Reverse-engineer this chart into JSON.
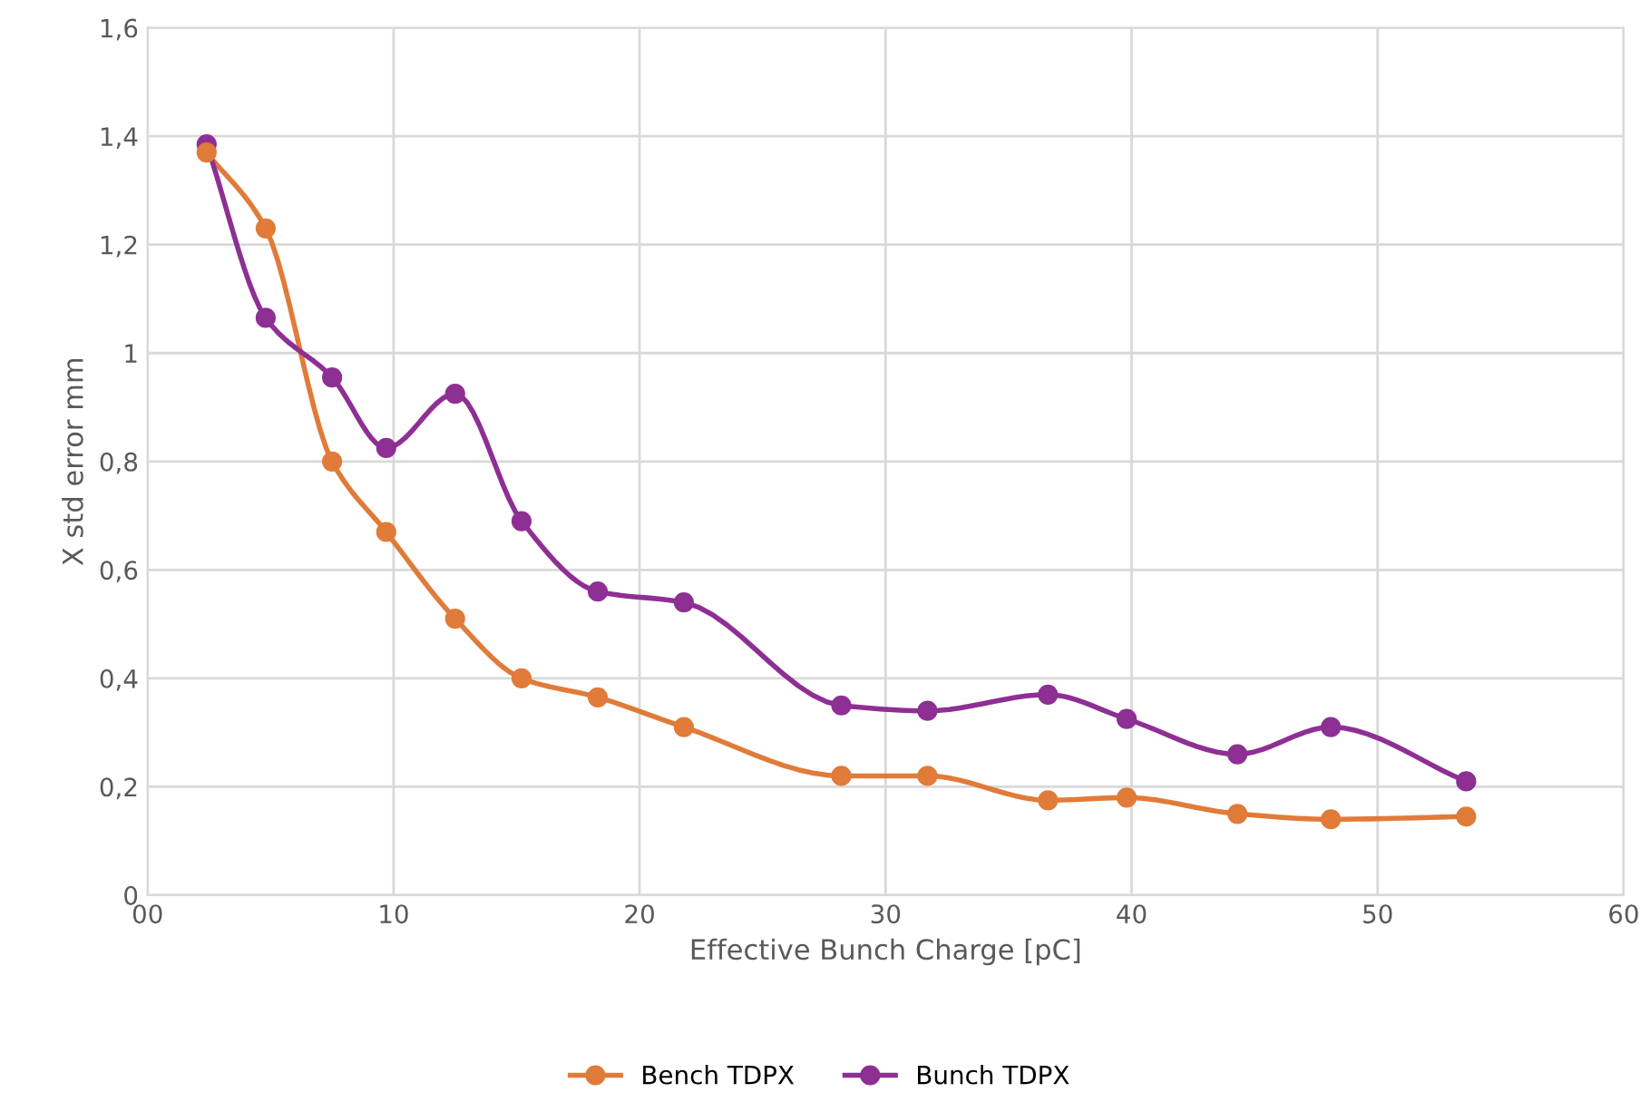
{
  "chart_data": {
    "type": "line",
    "xlabel": "Effective Bunch Charge [pC]",
    "ylabel": "X std error mm",
    "xlim": [
      0,
      60
    ],
    "xticks": [
      {
        "value": 0,
        "label": "00"
      },
      10,
      20,
      30,
      40,
      50,
      60
    ],
    "ylim": [
      0,
      1.6
    ],
    "yticks": [
      0,
      {
        "value": 0.2,
        "label": "0,2"
      },
      {
        "value": 0.4,
        "label": "0,4"
      },
      {
        "value": 0.6,
        "label": "0,6"
      },
      {
        "value": 0.8,
        "label": "0,8"
      },
      1,
      {
        "value": 1.2,
        "label": "1,2"
      },
      {
        "value": 1.4,
        "label": "1,4"
      },
      {
        "value": 1.6,
        "label": "1,6"
      }
    ],
    "x": [
      2.4,
      4.8,
      7.5,
      9.7,
      12.5,
      15.2,
      18.3,
      21.8,
      28.2,
      31.7,
      36.6,
      39.8,
      44.3,
      48.1,
      53.6
    ],
    "series": [
      {
        "name": "Bench TDPX",
        "color": "#e07b39",
        "values": [
          1.37,
          1.23,
          0.8,
          0.67,
          0.51,
          0.4,
          0.365,
          0.31,
          0.22,
          0.22,
          0.175,
          0.18,
          0.15,
          0.14,
          0.145
        ]
      },
      {
        "name": "Bunch TDPX",
        "color": "#8e2f94",
        "values": [
          1.385,
          1.065,
          0.955,
          0.825,
          0.925,
          0.69,
          0.56,
          0.54,
          0.35,
          0.34,
          0.37,
          0.325,
          0.26,
          0.31,
          0.21
        ]
      }
    ],
    "grid": true,
    "legend": "bottom",
    "marker": "circle",
    "line_style": "solid"
  }
}
